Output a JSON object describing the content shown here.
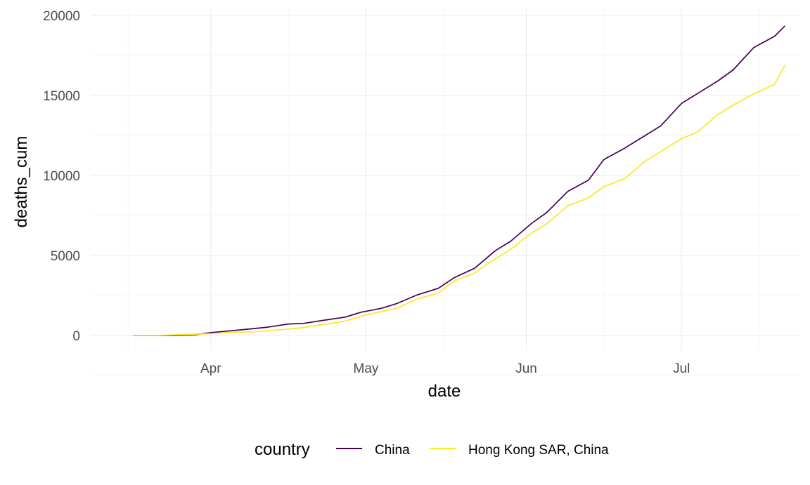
{
  "chart_data": {
    "type": "line",
    "title": "",
    "xlabel": "date",
    "ylabel": "deaths_cum",
    "x_ticks": [
      "Apr",
      "May",
      "Jun",
      "Jul"
    ],
    "y_ticks": [
      "0",
      "5000",
      "10000",
      "15000",
      "20000"
    ],
    "ylim": [
      0,
      20000
    ],
    "xlim": [
      "2022-03-13",
      "2022-07-15"
    ],
    "grid": true,
    "legend": {
      "title": "country",
      "position": "bottom"
    },
    "series": [
      {
        "name": "China",
        "color": "#440154",
        "points": [
          [
            "2022-03-17",
            0
          ],
          [
            "2022-03-21",
            0
          ],
          [
            "2022-03-25",
            0
          ],
          [
            "2022-03-29",
            50
          ],
          [
            "2022-04-01",
            180
          ],
          [
            "2022-04-05",
            300
          ],
          [
            "2022-04-09",
            420
          ],
          [
            "2022-04-12",
            520
          ],
          [
            "2022-04-16",
            720
          ],
          [
            "2022-04-19",
            760
          ],
          [
            "2022-04-23",
            960
          ],
          [
            "2022-04-27",
            1150
          ],
          [
            "2022-04-30",
            1450
          ],
          [
            "2022-05-04",
            1700
          ],
          [
            "2022-05-07",
            2000
          ],
          [
            "2022-05-11",
            2550
          ],
          [
            "2022-05-15",
            2950
          ],
          [
            "2022-05-18",
            3600
          ],
          [
            "2022-05-22",
            4200
          ],
          [
            "2022-05-26",
            5300
          ],
          [
            "2022-05-29",
            5900
          ],
          [
            "2022-06-02",
            7000
          ],
          [
            "2022-06-05",
            7700
          ],
          [
            "2022-06-09",
            9000
          ],
          [
            "2022-06-13",
            9700
          ],
          [
            "2022-06-16",
            11000
          ],
          [
            "2022-06-20",
            11700
          ],
          [
            "2022-06-24",
            12500
          ],
          [
            "2022-06-27",
            13100
          ],
          [
            "2022-07-01",
            14500
          ],
          [
            "2022-07-04",
            15100
          ],
          [
            "2022-07-08",
            15900
          ],
          [
            "2022-07-11",
            16600
          ],
          [
            "2022-07-15",
            18000
          ],
          [
            "2022-07-19",
            18700
          ],
          [
            "2022-07-21",
            19350
          ]
        ]
      },
      {
        "name": "Hong Kong SAR, China",
        "color": "#FDE725",
        "points": [
          [
            "2022-03-17",
            0
          ],
          [
            "2022-03-21",
            0
          ],
          [
            "2022-03-25",
            40
          ],
          [
            "2022-03-29",
            80
          ],
          [
            "2022-04-01",
            120
          ],
          [
            "2022-04-05",
            200
          ],
          [
            "2022-04-09",
            230
          ],
          [
            "2022-04-12",
            300
          ],
          [
            "2022-04-16",
            400
          ],
          [
            "2022-04-19",
            500
          ],
          [
            "2022-04-23",
            700
          ],
          [
            "2022-04-27",
            900
          ],
          [
            "2022-04-30",
            1200
          ],
          [
            "2022-05-04",
            1500
          ],
          [
            "2022-05-07",
            1700
          ],
          [
            "2022-05-11",
            2300
          ],
          [
            "2022-05-15",
            2650
          ],
          [
            "2022-05-18",
            3400
          ],
          [
            "2022-05-22",
            3900
          ],
          [
            "2022-05-26",
            4800
          ],
          [
            "2022-05-29",
            5400
          ],
          [
            "2022-06-02",
            6400
          ],
          [
            "2022-06-05",
            7000
          ],
          [
            "2022-06-09",
            8100
          ],
          [
            "2022-06-13",
            8600
          ],
          [
            "2022-06-16",
            9300
          ],
          [
            "2022-06-20",
            9800
          ],
          [
            "2022-06-24",
            10900
          ],
          [
            "2022-06-27",
            11500
          ],
          [
            "2022-07-01",
            12300
          ],
          [
            "2022-07-04",
            12700
          ],
          [
            "2022-07-08",
            13800
          ],
          [
            "2022-07-11",
            14400
          ],
          [
            "2022-07-15",
            15100
          ],
          [
            "2022-07-19",
            15700
          ],
          [
            "2022-07-21",
            16900
          ]
        ]
      }
    ]
  }
}
